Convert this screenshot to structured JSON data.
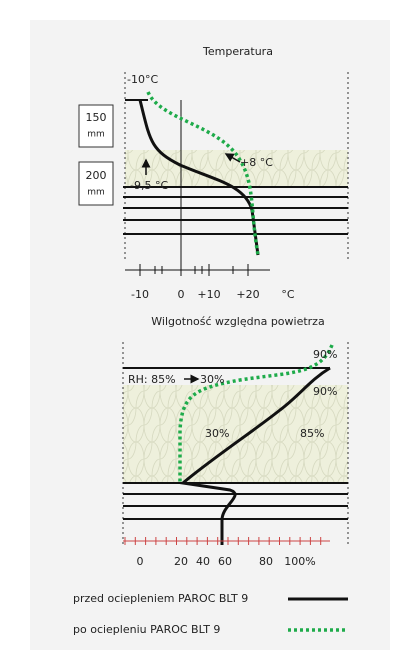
{
  "temperature": {
    "title": "Temperatura",
    "top_label": "-10°C",
    "warm_label": "+8 °C",
    "cold_label": "-9,5 °C",
    "layers": [
      {
        "value": "150",
        "unit": "mm"
      },
      {
        "value": "200",
        "unit": "mm"
      }
    ],
    "x_labels": [
      "-10",
      "0",
      "+10",
      "+20",
      "°C"
    ]
  },
  "humidity": {
    "title": "Wilgotność względna powietrza",
    "rh_label": "RH: 85%",
    "rh_after": "30%",
    "labels": [
      "90%",
      "90%",
      "30%",
      "85%"
    ],
    "x_labels": [
      "0",
      "20",
      "40",
      "60",
      "80",
      "100%"
    ]
  },
  "legend": [
    "przed ociepleniem PAROC BLT 9",
    "po ociepleniu PAROC BLT 9"
  ]
}
